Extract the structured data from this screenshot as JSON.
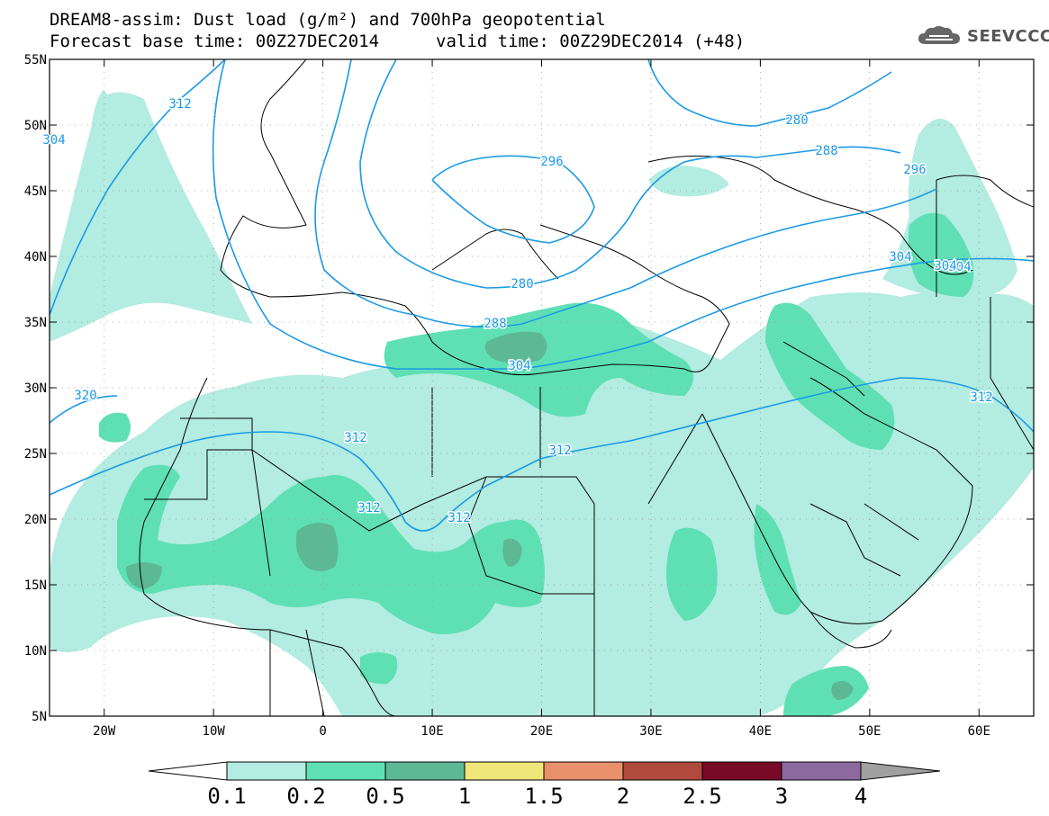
{
  "title": {
    "line1": "DREAM8-assim: Dust load (g/m²) and 700hPa geopotential",
    "line2": "Forecast base time: 00Z27DEC2014",
    "valid": "valid time: 00Z29DEC2014 (+48)"
  },
  "logo": {
    "text": "SEEVCCC",
    "icon": "cloud-icon"
  },
  "map": {
    "lon_range": [
      -25,
      65
    ],
    "lat_range": [
      5,
      55
    ],
    "lat_labels": [
      "55N",
      "50N",
      "45N",
      "40N",
      "35N",
      "30N",
      "25N",
      "20N",
      "15N",
      "10N",
      "5N"
    ],
    "lon_labels": [
      "20W",
      "10W",
      "0",
      "10E",
      "20E",
      "30E",
      "40E",
      "50E",
      "60E"
    ],
    "contour_labels": [
      "312",
      "280",
      "288",
      "296",
      "280",
      "288",
      "304",
      "296",
      "304",
      "312",
      "320",
      "312",
      "312",
      "312",
      "312",
      "304",
      "304",
      "304"
    ],
    "contour_color": "#1a9ae6"
  },
  "colorbar": {
    "ticks": [
      "0.1",
      "0.2",
      "0.5",
      "1",
      "1.5",
      "2",
      "2.5",
      "3",
      "4"
    ],
    "colors": [
      "#ffffff",
      "#b3ece0",
      "#5fe0b4",
      "#5db896",
      "#f0e67a",
      "#e8906a",
      "#b04a3c",
      "#780a28",
      "#8c6aa0",
      "#a0a0a0"
    ]
  }
}
